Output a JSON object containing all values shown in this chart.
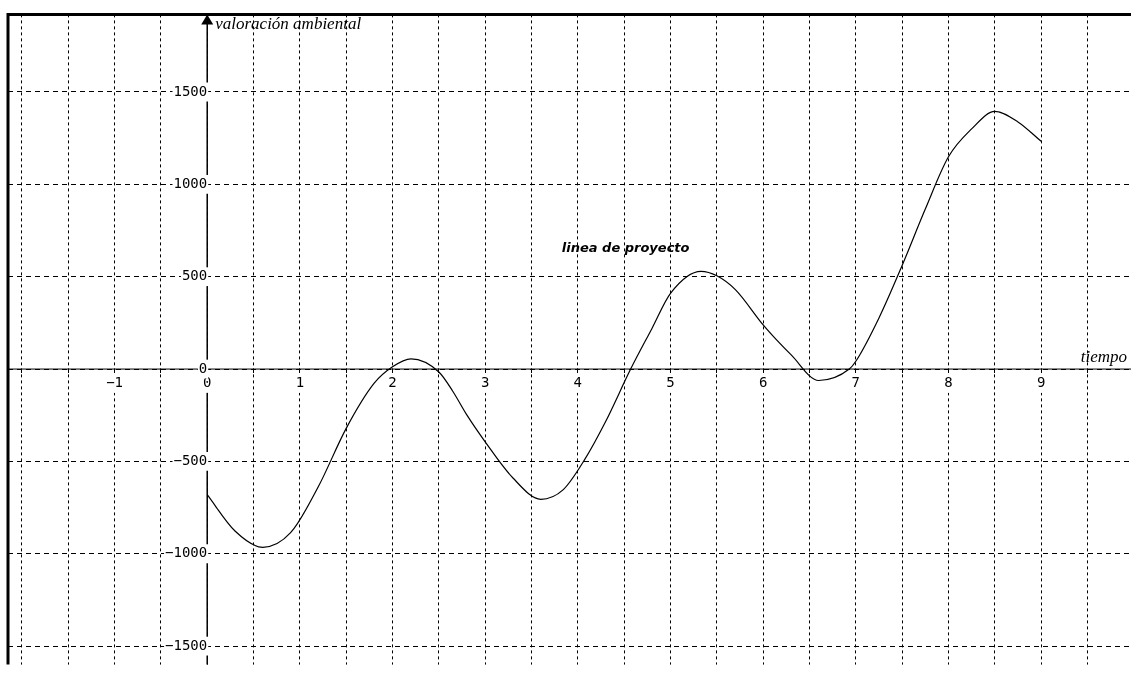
{
  "chart_data": {
    "type": "line",
    "xlabel": "tiempo",
    "ylabel": "valoración ambiental",
    "x": [
      0,
      0.3,
      0.6,
      0.9,
      1.2,
      1.5,
      1.8,
      2,
      2.2,
      2.5,
      2.65,
      2.8,
      3,
      3.3,
      3.6,
      3.84,
      4.07,
      4.3,
      4.57,
      4.8,
      5,
      5.33,
      5.5,
      5.7,
      6,
      6.15,
      6.3,
      6.6,
      6.93,
      7,
      7.25,
      7.5,
      7.75,
      8,
      8.25,
      8.5,
      8.75,
      9
    ],
    "series": [
      {
        "color": "#000000",
        "values": [
          -680,
          -877,
          -965,
          -886,
          -636,
          -321,
          -78,
          12,
          55,
          -16,
          -120,
          -247,
          -394,
          -590,
          -705,
          -654,
          -493,
          -284,
          0,
          220,
          410,
          529,
          505,
          430,
          239,
          155,
          78,
          -62,
          0,
          42,
          277,
          561,
          866,
          1149,
          1300,
          1395,
          1338,
          1233
        ]
      }
    ],
    "xlim": [
      -2.15,
      9.97
    ],
    "ylim": [
      -1600,
      1920
    ],
    "xticks": [
      {
        "value": -2,
        "label": null
      },
      {
        "value": -1.5,
        "label": null
      },
      -1,
      {
        "value": -0.5,
        "label": null
      },
      0,
      {
        "value": 0.5,
        "label": null
      },
      1,
      {
        "value": 1.5,
        "label": null
      },
      2,
      {
        "value": 2.5,
        "label": null
      },
      3,
      {
        "value": 3.5,
        "label": null
      },
      4,
      {
        "value": 4.5,
        "label": null
      },
      5,
      {
        "value": 5.5,
        "label": null
      },
      6,
      {
        "value": 6.5,
        "label": null
      },
      7,
      {
        "value": 7.5,
        "label": null
      },
      8,
      {
        "value": 8.5,
        "label": null
      },
      9,
      {
        "value": 9.5,
        "label": null
      }
    ],
    "yticks": [
      -1500,
      -1000,
      -500,
      0,
      500,
      1000,
      1500
    ],
    "grid": true,
    "legend": false,
    "marker": "none",
    "line_style": "solid",
    "annotations": [
      "linea de proyecto"
    ]
  }
}
